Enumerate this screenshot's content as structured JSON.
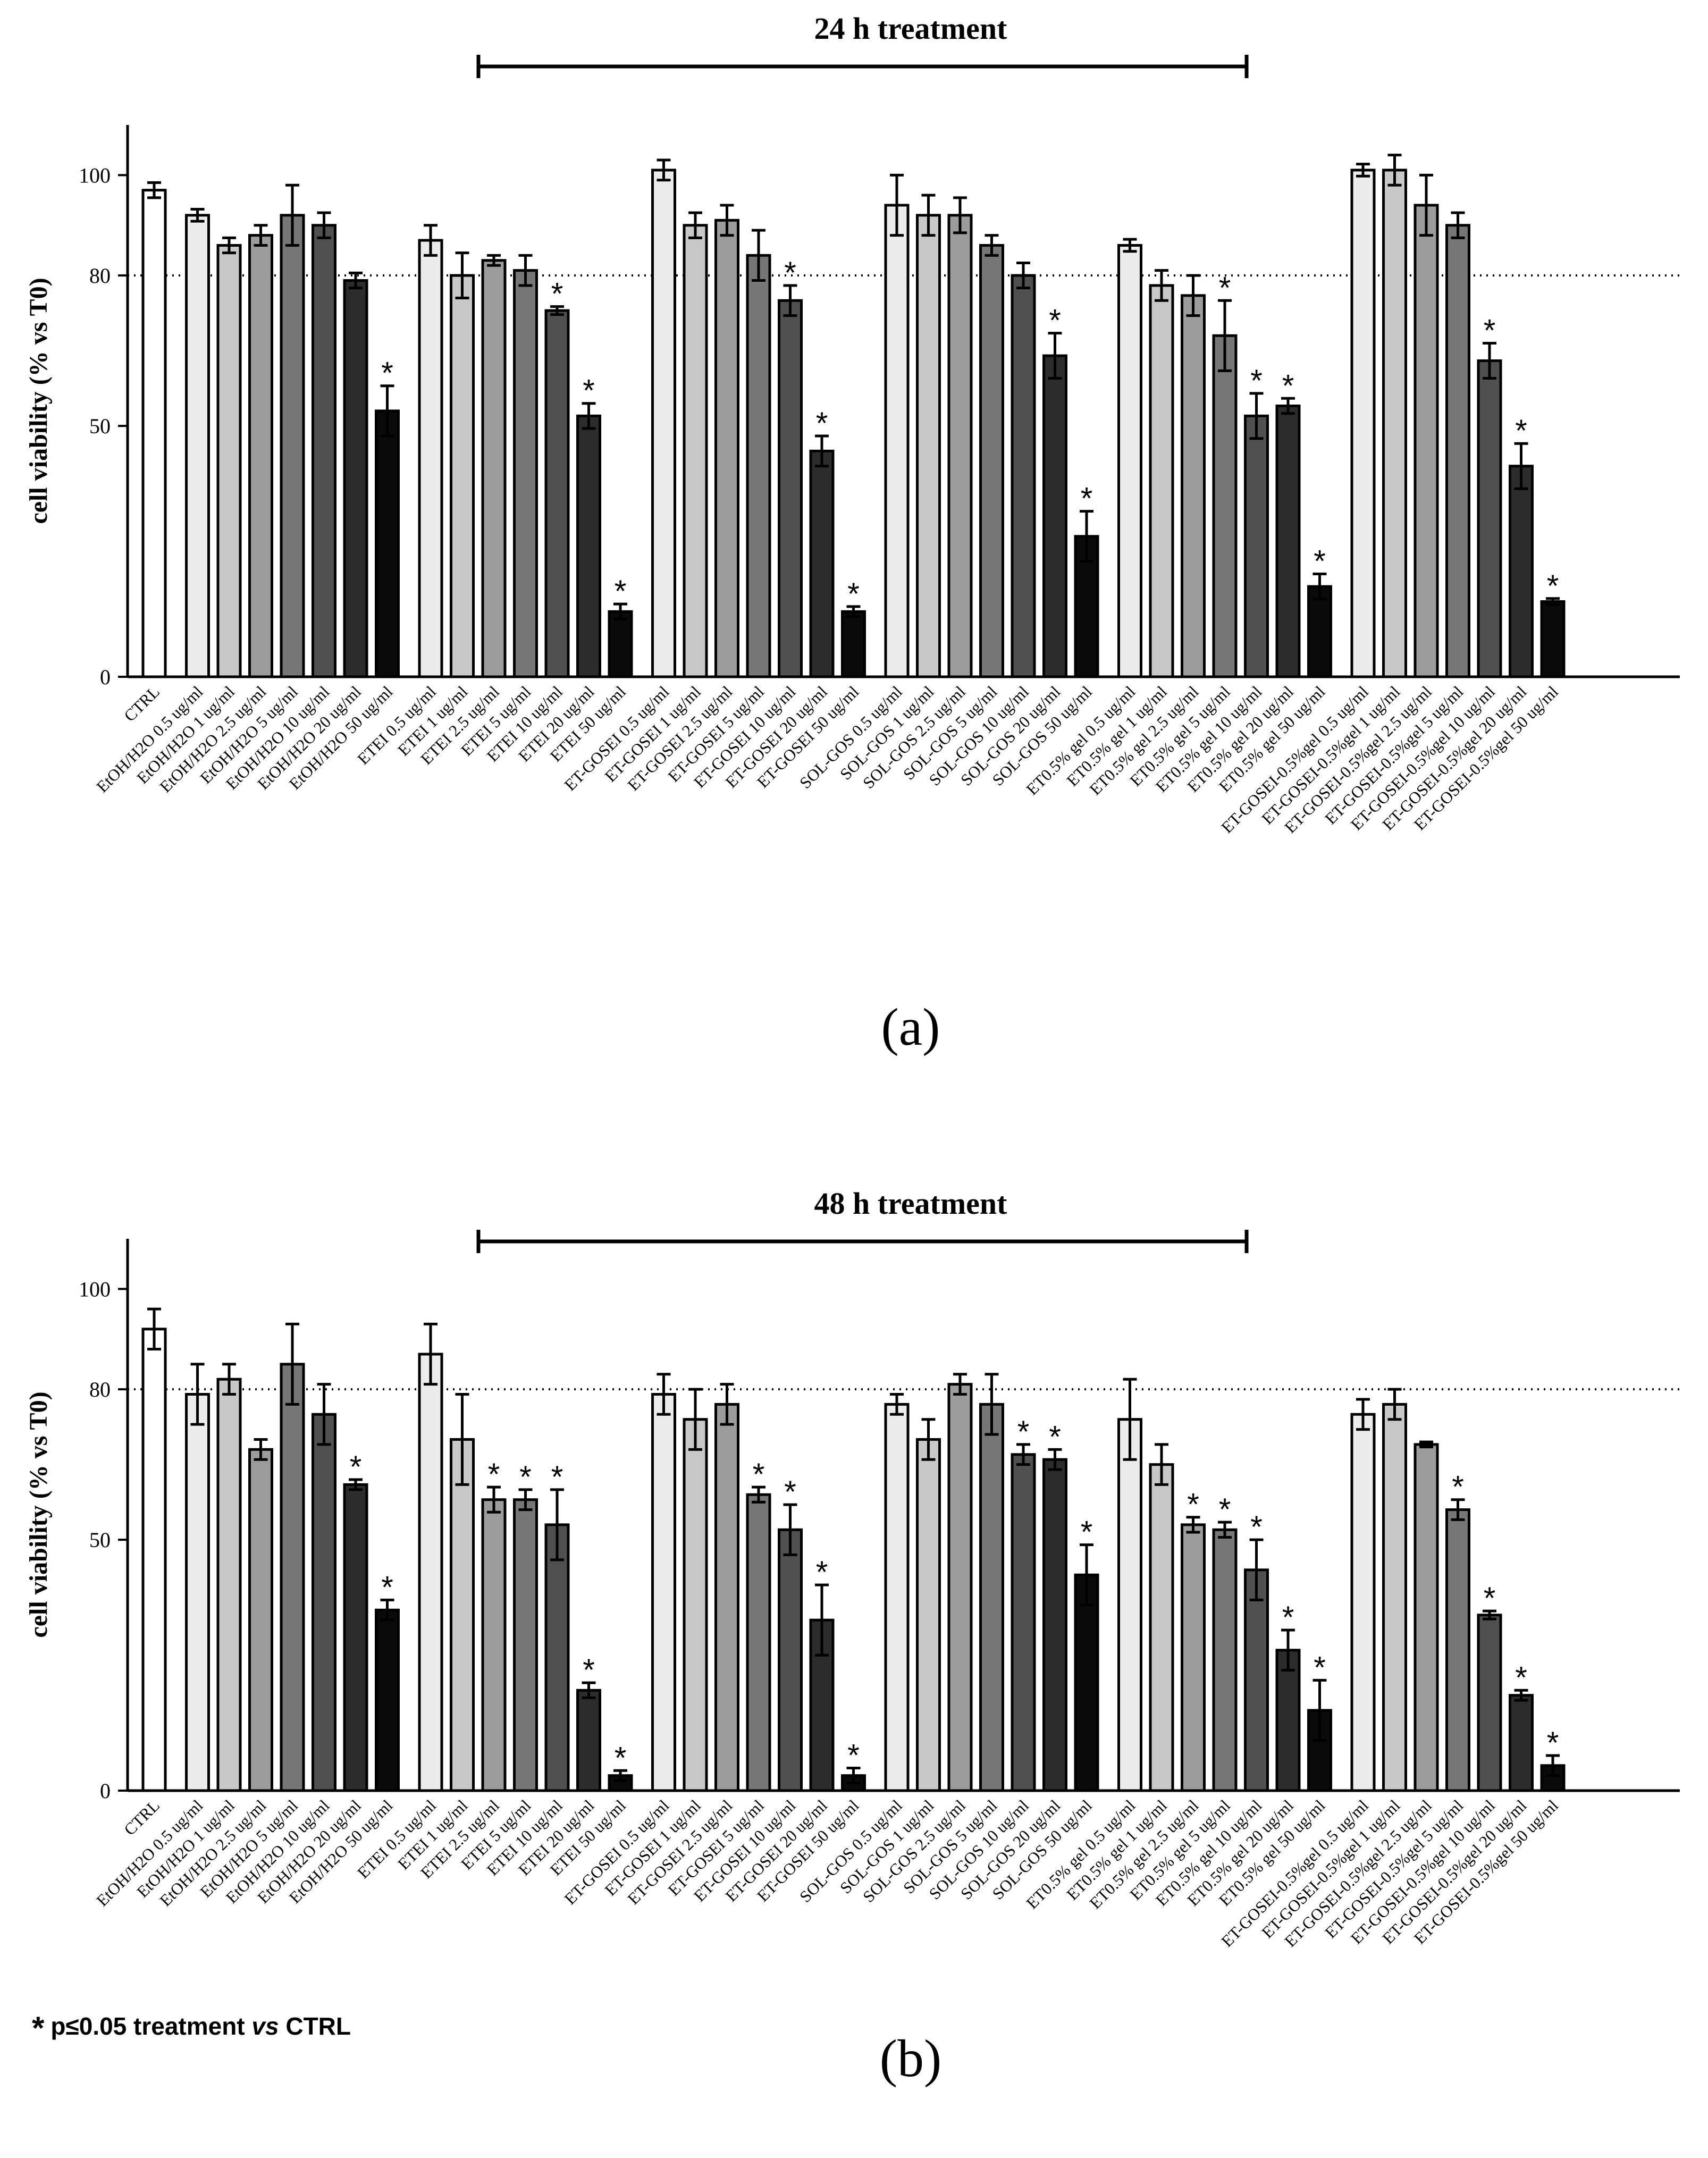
{
  "colors": {
    "bar_fills": [
      "#ffffff",
      "#ececec",
      "#c8c8c8",
      "#9c9c9c",
      "#767676",
      "#505050",
      "#2c2c2c",
      "#0a0a0a"
    ],
    "axis": "#000000"
  },
  "footnote": {
    "star": "*",
    "text_a": "p≤0.05 treatment ",
    "text_vs": "vs",
    "text_b": " CTRL"
  },
  "chart_data": [
    {
      "type": "bar",
      "panel_label": "(a)",
      "title": "24 h treatment",
      "ylabel": "cell viability (% vs T0)",
      "ylim": [
        0,
        110
      ],
      "yticks": [
        0,
        50,
        80,
        100
      ],
      "reference_line": 80,
      "categories": [
        "CTRL",
        "EtOH/H2O 0.5 ug/ml",
        "EtOH/H2O 1 ug/ml",
        "EtOH/H2O 2.5 ug/ml",
        "EtOH/H2O 5 ug/ml",
        "EtOH/H2O 10 ug/ml",
        "EtOH/H2O 20 ug/ml",
        "EtOH/H2O 50 ug/ml",
        "ETEI 0.5 ug/ml",
        "ETEI 1 ug/ml",
        "ETEI 2.5 ug/ml",
        "ETEI 5 ug/ml",
        "ETEI 10 ug/ml",
        "ETEI 20 ug/ml",
        "ETEI 50 ug/ml",
        "ET-GOSEI 0.5 ug/ml",
        "ET-GOSEI 1 ug/ml",
        "ET-GOSEI 2.5 ug/ml",
        "ET-GOSEI 5 ug/ml",
        "ET-GOSEI 10 ug/ml",
        "ET-GOSEI 20 ug/ml",
        "ET-GOSEI 50 ug/ml",
        "SOL-GOS 0.5 ug/ml",
        "SOL-GOS 1 ug/ml",
        "SOL-GOS 2.5 ug/ml",
        "SOL-GOS 5 ug/ml",
        "SOL-GOS 10 ug/ml",
        "SOL-GOS 20 ug/ml",
        "SOL-GOS 50 ug/ml",
        "ET0.5% gel 0.5 ug/ml",
        "ET0.5% gel 1 ug/ml",
        "ET0.5% gel 2.5 ug/ml",
        "ET0.5% gel 5 ug/ml",
        "ET0.5% gel 10 ug/ml",
        "ET0.5% gel 20 ug/ml",
        "ET0.5% gel 50 ug/ml",
        "ET-GOSEI-0.5%gel 0.5 ug/ml",
        "ET-GOSEI-0.5%gel 1 ug/ml",
        "ET-GOSEI-0.5%gel 2.5 ug/ml",
        "ET-GOSEI-0.5%gel 5 ug/ml",
        "ET-GOSEI-0.5%gel 10 ug/ml",
        "ET-GOSEI-0.5%gel 20 ug/ml",
        "ET-GOSEI-0.5%gel 50 ug/ml"
      ],
      "values": [
        97,
        92,
        86,
        88,
        92,
        90,
        79,
        53,
        87,
        80,
        83,
        81,
        73,
        52,
        13,
        101,
        90,
        91,
        84,
        75,
        45,
        13,
        94,
        92,
        92,
        86,
        80,
        64,
        28,
        86,
        78,
        76,
        68,
        52,
        54,
        18,
        101,
        101,
        94,
        90,
        63,
        42,
        15
      ],
      "errors": [
        1.5,
        1.2,
        1.5,
        2,
        6,
        2.5,
        1.5,
        5,
        3,
        4.5,
        1,
        3,
        0.8,
        2.5,
        1.5,
        2,
        2.5,
        3,
        5,
        3,
        3,
        1,
        6,
        4,
        3.5,
        2,
        2.5,
        4.5,
        5,
        1.2,
        3,
        4,
        7,
        4.5,
        1.5,
        2.5,
        1.2,
        3,
        6,
        2.5,
        3.5,
        4.5,
        0.6
      ],
      "significant": [
        false,
        false,
        false,
        false,
        false,
        false,
        false,
        true,
        false,
        false,
        false,
        false,
        true,
        true,
        true,
        false,
        false,
        false,
        false,
        true,
        true,
        true,
        false,
        false,
        false,
        false,
        false,
        true,
        true,
        false,
        false,
        false,
        true,
        true,
        true,
        true,
        false,
        false,
        false,
        false,
        true,
        true,
        true
      ]
    },
    {
      "type": "bar",
      "panel_label": "(b)",
      "title": "48 h treatment",
      "ylabel": "cell viability (% vs T0)",
      "ylim": [
        0,
        110
      ],
      "yticks": [
        0,
        50,
        80,
        100
      ],
      "reference_line": 80,
      "categories": [
        "CTRL",
        "EtOH/H2O 0.5 ug/ml",
        "EtOH/H2O 1 ug/ml",
        "EtOH/H2O 2.5 ug/ml",
        "EtOH/H2O 5 ug/ml",
        "EtOH/H2O 10 ug/ml",
        "EtOH/H2O 20 ug/ml",
        "EtOH/H2O 50 ug/ml",
        "ETEI 0.5 ug/ml",
        "ETEI 1 ug/ml",
        "ETEI 2.5 ug/ml",
        "ETEI 5 ug/ml",
        "ETEI 10 ug/ml",
        "ETEI 20 ug/ml",
        "ETEI 50 ug/ml",
        "ET-GOSEI 0.5 ug/ml",
        "ET-GOSEI 1 ug/ml",
        "ET-GOSEI 2.5 ug/ml",
        "ET-GOSEI 5 ug/ml",
        "ET-GOSEI 10 ug/ml",
        "ET-GOSEI 20 ug/ml",
        "ET-GOSEI 50 ug/ml",
        "SOL-GOS 0.5 ug/ml",
        "SOL-GOS 1 ug/ml",
        "SOL-GOS 2.5 ug/ml",
        "SOL-GOS 5 ug/ml",
        "SOL-GOS 10 ug/ml",
        "SOL-GOS 20 ug/ml",
        "SOL-GOS 50 ug/ml",
        "ET0.5% gel 0.5 ug/ml",
        "ET0.5% gel 1 ug/ml",
        "ET0.5% gel 2.5 ug/ml",
        "ET0.5% gel 5 ug/ml",
        "ET0.5% gel 10 ug/ml",
        "ET0.5% gel 20 ug/ml",
        "ET0.5% gel 50 ug/ml",
        "ET-GOSEI-0.5%gel 0.5 ug/ml",
        "ET-GOSEI-0.5%gel 1 ug/ml",
        "ET-GOSEI-0.5%gel 2.5 ug/ml",
        "ET-GOSEI-0.5%gel 5 ug/ml",
        "ET-GOSEI-0.5%gel 10 ug/ml",
        "ET-GOSEI-0.5%gel 20 ug/ml",
        "ET-GOSEI-0.5%gel 50 ug/ml"
      ],
      "values": [
        92,
        79,
        82,
        68,
        85,
        75,
        61,
        36,
        87,
        70,
        58,
        58,
        53,
        20,
        3,
        79,
        74,
        77,
        59,
        52,
        34,
        3,
        77,
        70,
        81,
        77,
        67,
        66,
        43,
        74,
        65,
        53,
        52,
        44,
        28,
        16,
        75,
        77,
        69,
        56,
        35,
        19,
        5
      ],
      "errors": [
        4,
        6,
        3,
        2,
        8,
        6,
        1,
        2,
        6,
        9,
        2.5,
        2,
        7,
        1.5,
        1,
        4,
        6,
        4,
        1.5,
        5,
        7,
        1.5,
        2,
        4,
        2,
        6,
        2,
        2,
        6,
        8,
        4,
        1.5,
        1.5,
        6,
        4,
        6,
        3,
        3,
        0.5,
        2,
        0.8,
        1,
        2
      ],
      "significant": [
        false,
        false,
        false,
        false,
        false,
        false,
        true,
        true,
        false,
        false,
        true,
        true,
        true,
        true,
        true,
        false,
        false,
        false,
        true,
        true,
        true,
        true,
        false,
        false,
        false,
        false,
        true,
        true,
        true,
        false,
        false,
        true,
        true,
        true,
        true,
        true,
        false,
        false,
        false,
        true,
        true,
        true,
        true
      ]
    }
  ]
}
